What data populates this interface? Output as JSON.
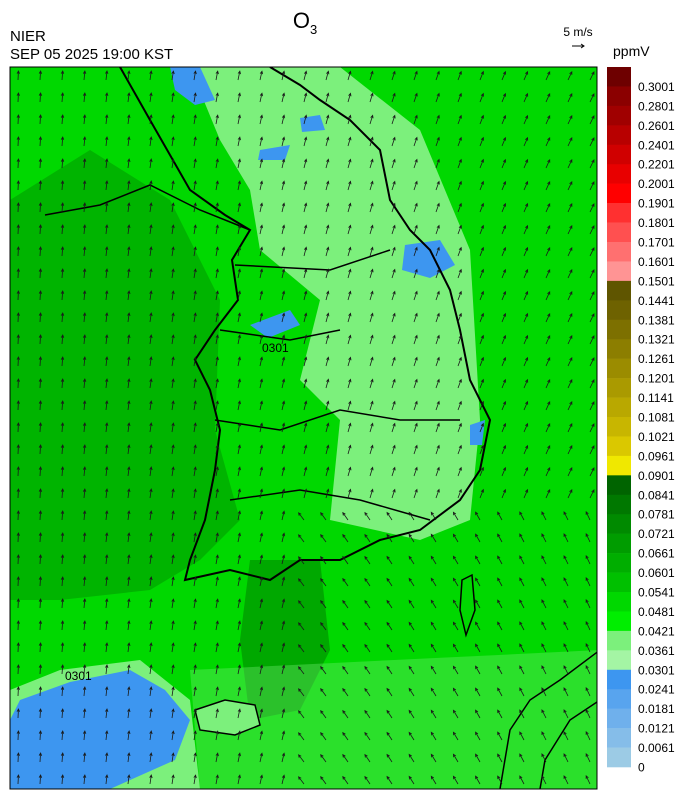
{
  "header": {
    "title": {
      "main": "O",
      "subscript": "3"
    },
    "agency": "NIER",
    "timestamp": "SEP 05 2025 19:00 KST",
    "vector_reference": "5 m/s"
  },
  "colorbar": {
    "unit": "ppmV",
    "labels": [
      0.3001,
      0.2801,
      0.2601,
      0.2401,
      0.2201,
      0.2001,
      0.1901,
      0.1801,
      0.1701,
      0.1601,
      0.1501,
      0.1441,
      0.1381,
      0.1321,
      0.1261,
      0.1201,
      0.1141,
      0.1081,
      0.1021,
      0.0961,
      0.0901,
      0.0841,
      0.0781,
      0.0721,
      0.0661,
      0.0601,
      0.0541,
      0.0481,
      0.0421,
      0.0361,
      0.0301,
      0.0241,
      0.0181,
      0.0121,
      0.0061,
      0
    ],
    "colors": [
      "#6e0000",
      "#8b0000",
      "#a00000",
      "#b80000",
      "#d00000",
      "#e80000",
      "#ff0000",
      "#ff3030",
      "#ff5050",
      "#ff7070",
      "#ff9494",
      "#5f5500",
      "#6e6200",
      "#7d7000",
      "#8c7e00",
      "#9b8c00",
      "#aa9a00",
      "#b9a800",
      "#c8b600",
      "#dac800",
      "#f0e800",
      "#006400",
      "#007800",
      "#008a00",
      "#009c00",
      "#00ae00",
      "#00c000",
      "#00d800",
      "#00ee00",
      "#7cf07c",
      "#a4f5a4",
      "#3d96f0",
      "#58a4ee",
      "#6fb0ec",
      "#85bde9",
      "#9ccbe5"
    ]
  },
  "map": {
    "contour_labels": [
      "0301",
      "0301"
    ]
  }
}
